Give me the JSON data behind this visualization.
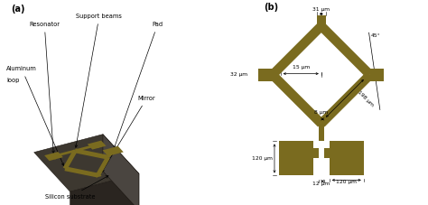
{
  "bg_color": "#ffffff",
  "gold": "#7a6b1f",
  "substrate_top": "#3d3830",
  "substrate_front": "#2a2520",
  "substrate_right": "#4a4540",
  "substrate_edge": "#1a1510",
  "panel_a_label": "(a)",
  "panel_b_label": "(b)",
  "labels": {
    "resonator": "Resonator",
    "support_beams": "Support beams",
    "pad": "Pad",
    "aluminum_loop_l1": "Aluminum",
    "aluminum_loop_l2": "loop",
    "mirror": "Mirror",
    "silicon_substrate": "Silicon substrate"
  },
  "dims": {
    "top_width": "31 μm",
    "left_pad": "32 μm",
    "inner": "15 μm",
    "angle": "45°",
    "beam_len": "198 μm",
    "gap": "8 μm",
    "stem": "12 μm",
    "pad_h": "120 μm",
    "pad_w": "120 μm"
  }
}
